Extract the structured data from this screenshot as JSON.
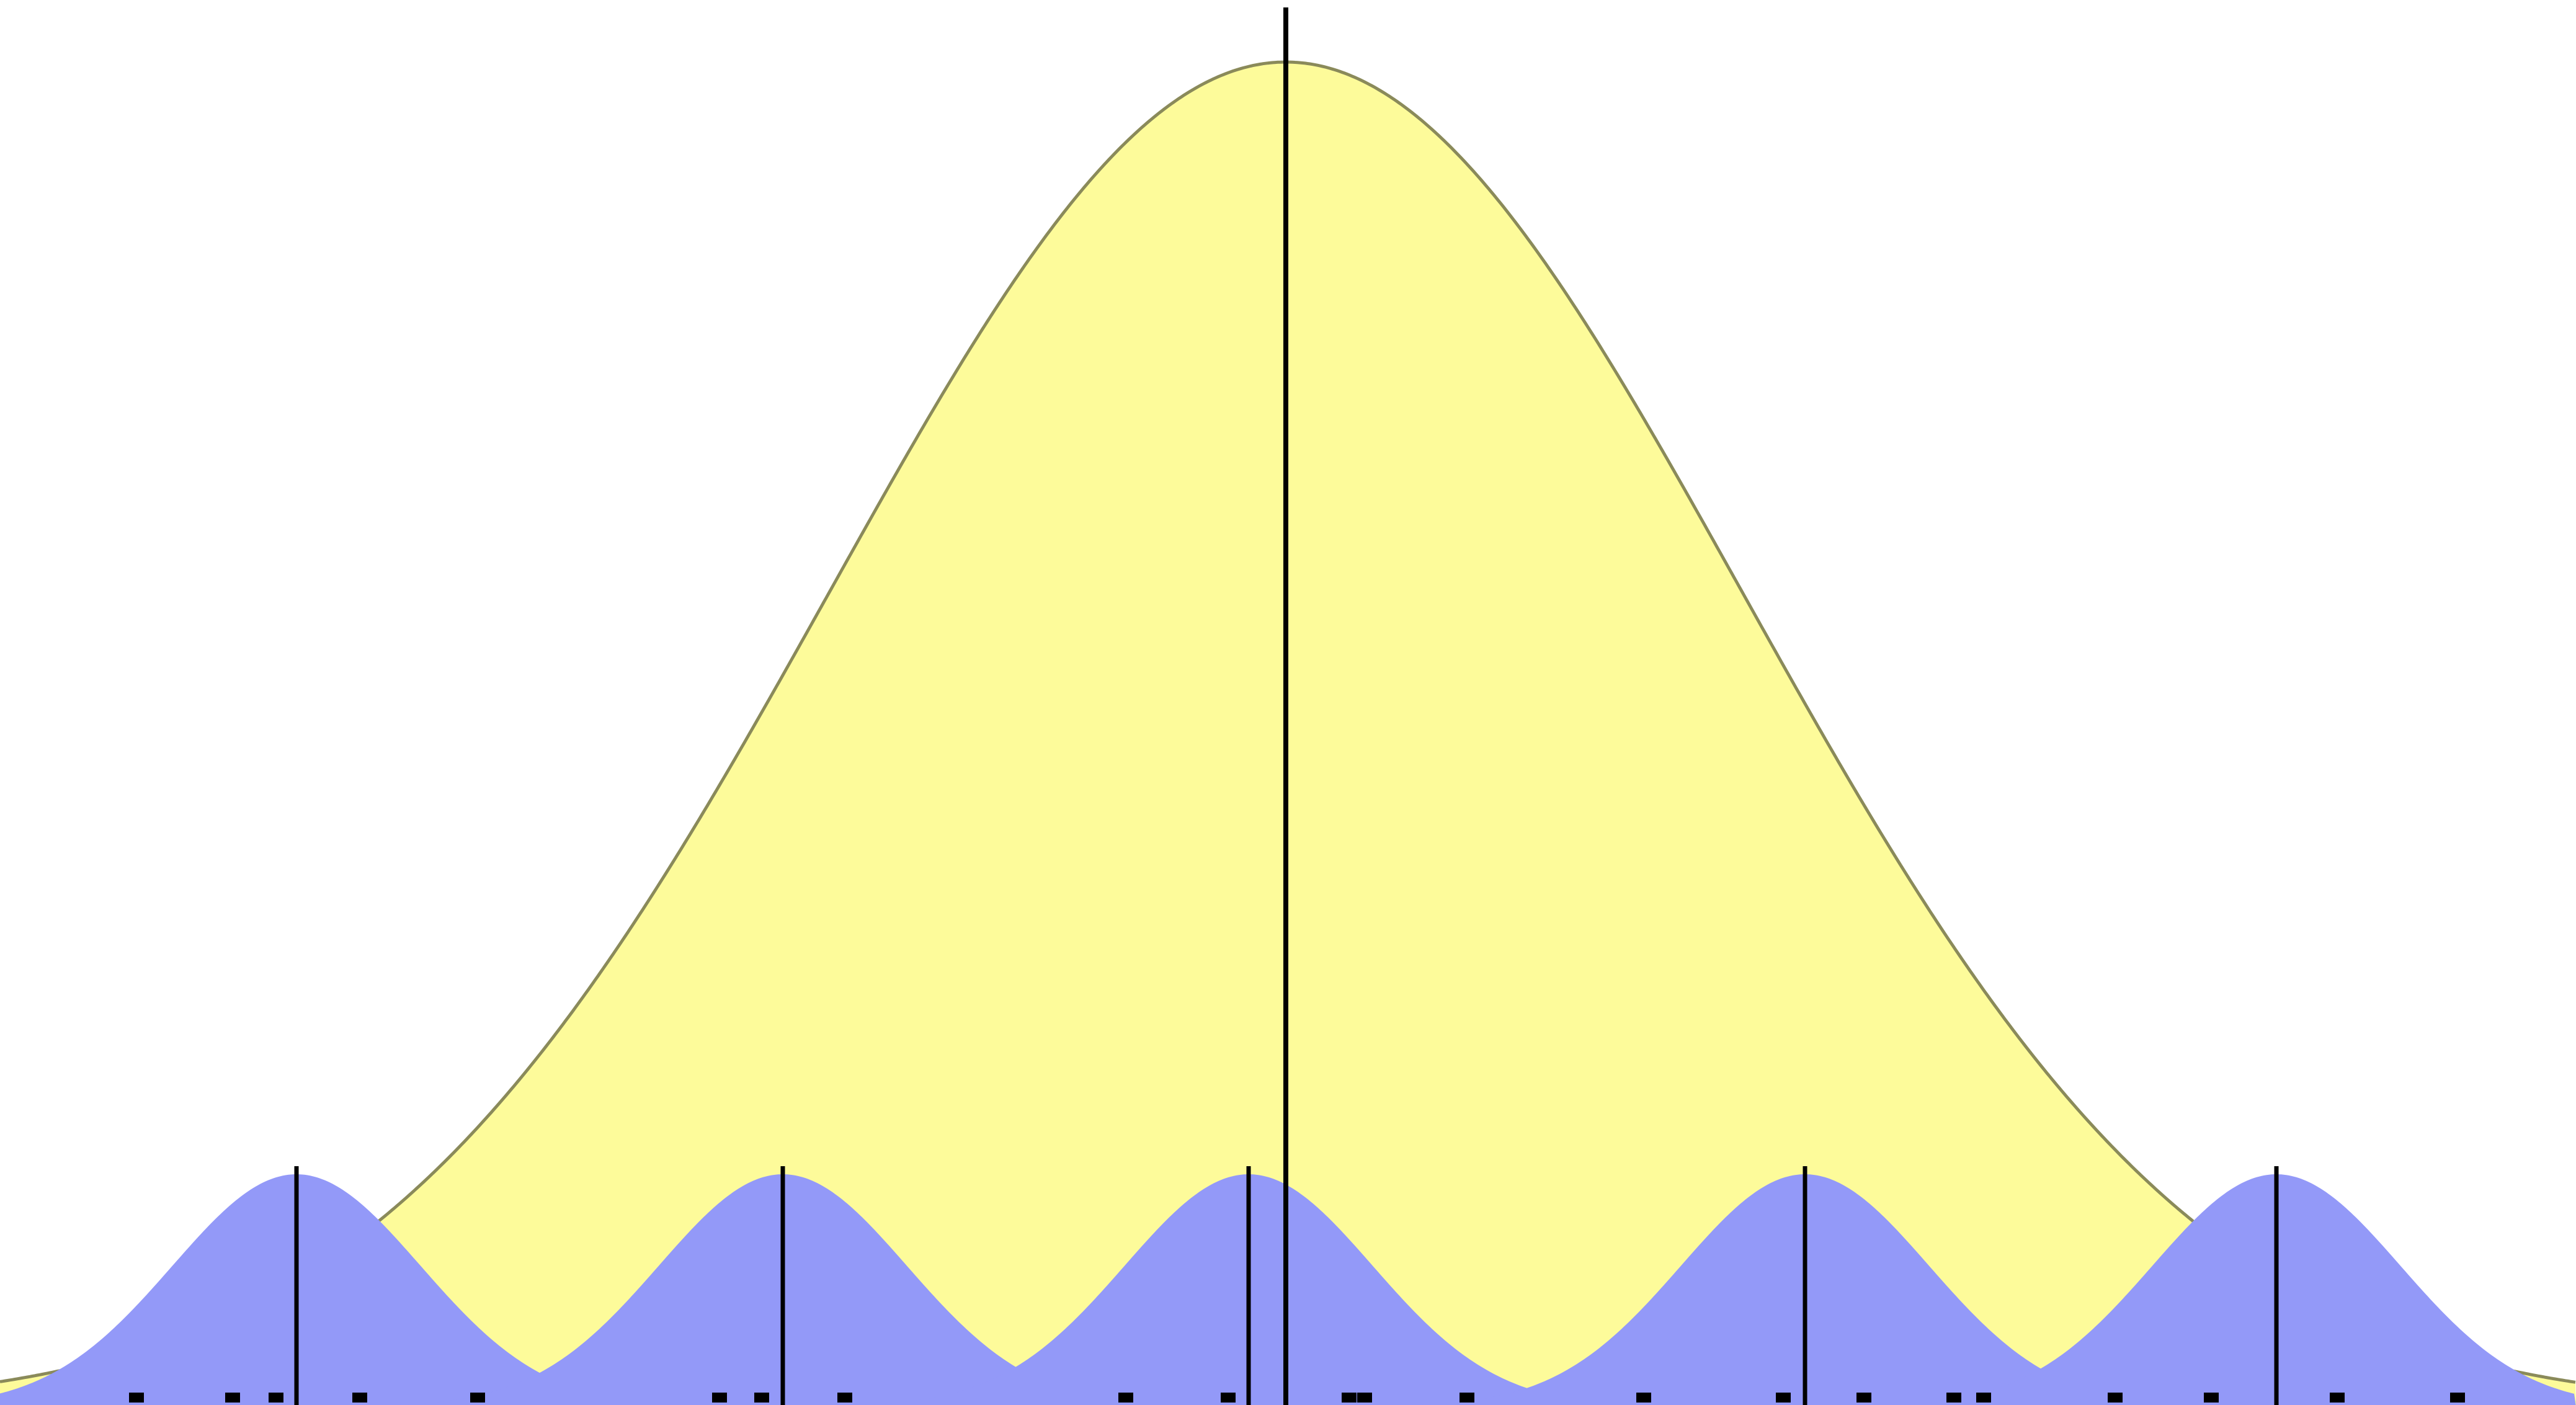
{
  "figure": {
    "description_free": true,
    "colors": {
      "background": "#ffffff",
      "broad_fill": "#fdfb9a",
      "broad_stroke": "#8a8a5a",
      "narrow_fill": "#9399f8",
      "line": "#000000",
      "baseline": "#fffa66"
    },
    "broad_distribution": {
      "mean_line": true
    },
    "narrow_distributions": {
      "count": 5,
      "mean_lines": true
    },
    "sample_points": {
      "count": 22,
      "marker": "square"
    }
  }
}
